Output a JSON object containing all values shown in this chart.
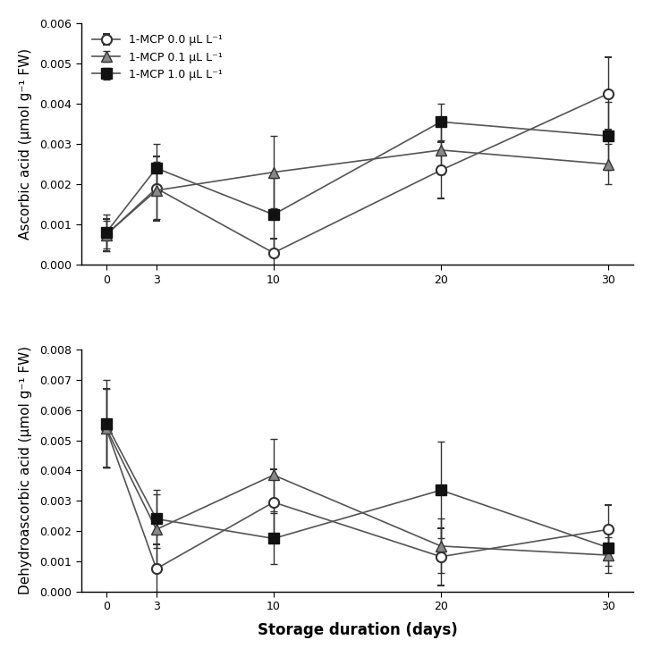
{
  "x": [
    0,
    3,
    10,
    20,
    30
  ],
  "top": {
    "series": [
      {
        "label": "1-MCP 0.0 μL L⁻¹",
        "y": [
          0.00075,
          0.0019,
          0.0003,
          0.00235,
          0.00425
        ],
        "yerr": [
          0.0004,
          0.0008,
          0.00035,
          0.0007,
          0.0009
        ],
        "marker": "o",
        "markersize": 8
      },
      {
        "label": "1-MCP 0.1 μL L⁻¹",
        "y": [
          0.00075,
          0.00185,
          0.0023,
          0.00285,
          0.0025
        ],
        "yerr": [
          0.00035,
          0.0007,
          0.0009,
          0.0006,
          0.0005
        ],
        "marker": "^",
        "markersize": 8
      },
      {
        "label": "1-MCP 1.0 μL L⁻¹",
        "y": [
          0.0008,
          0.0024,
          0.00125,
          0.00355,
          0.0032
        ],
        "yerr": [
          0.00045,
          0.0006,
          0.0009,
          0.00045,
          0.00085
        ],
        "marker": "s",
        "markersize": 8
      }
    ],
    "ylabel": "Ascorbic acid (μmol g⁻¹ FW)",
    "ylim": [
      0,
      0.006
    ],
    "yticks": [
      0.0,
      0.001,
      0.002,
      0.003,
      0.004,
      0.005,
      0.006
    ]
  },
  "bottom": {
    "series": [
      {
        "label": "1-MCP 0.0 μL L⁻¹",
        "y": [
          0.0054,
          0.00075,
          0.00295,
          0.00115,
          0.00205
        ],
        "yerr": [
          0.0013,
          0.0008,
          0.0011,
          0.00095,
          0.0008
        ],
        "marker": "o",
        "markersize": 8
      },
      {
        "label": "1-MCP 0.1 μL L⁻¹",
        "y": [
          0.0054,
          0.00205,
          0.00385,
          0.0015,
          0.0012
        ],
        "yerr": [
          0.0013,
          0.00115,
          0.0012,
          0.0009,
          0.0006
        ],
        "marker": "^",
        "markersize": 8
      },
      {
        "label": "1-MCP 1.0 μL L⁻¹",
        "y": [
          0.00555,
          0.0024,
          0.00175,
          0.00335,
          0.00145
        ],
        "yerr": [
          0.00145,
          0.00095,
          0.00085,
          0.0016,
          0.0006
        ],
        "marker": "s",
        "markersize": 8
      }
    ],
    "ylabel": "Dehydroascorbic acid (μmol g⁻¹ FW)",
    "ylim": [
      0,
      0.008
    ],
    "yticks": [
      0.0,
      0.001,
      0.002,
      0.003,
      0.004,
      0.005,
      0.006,
      0.007,
      0.008
    ]
  },
  "xlabel": "Storage duration (days)",
  "xticks": [
    0,
    3,
    10,
    20,
    30
  ],
  "background_color": "#ffffff",
  "line_color": "#555555",
  "line_width": 1.2,
  "legend_fontsize": 9,
  "axis_label_fontsize": 11,
  "tick_fontsize": 9
}
